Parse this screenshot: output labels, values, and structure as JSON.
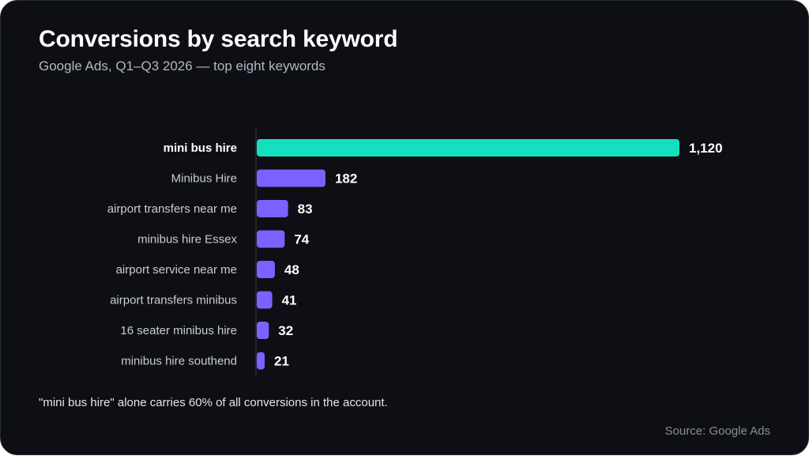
{
  "header": {
    "title": "Conversions by search keyword",
    "subtitle": "Google Ads, Q1–Q3 2026 — top eight keywords"
  },
  "footer": {
    "note": "\"mini bus hire\" alone carries 60% of all conversions in the account.",
    "source": "Source: Google Ads"
  },
  "colors": {
    "background": "#0e0f14",
    "highlight_bar": "#14e0c0",
    "bar": "#7b61ff",
    "axis_line": "#3a3d46",
    "label_text": "#c9ccd3",
    "highlight_label_text": "#ffffff",
    "value_text": "#ffffff"
  },
  "chart_data": {
    "type": "bar",
    "orientation": "horizontal",
    "categories": [
      "mini bus hire",
      "Minibus Hire",
      "airport transfers near me",
      "minibus hire Essex",
      "airport service near me",
      "airport transfers minibus",
      "16 seater minibus hire",
      "minibus hire southend"
    ],
    "values": [
      1120,
      182,
      83,
      74,
      48,
      41,
      32,
      21
    ],
    "value_labels": [
      "1,120",
      "182",
      "83",
      "74",
      "48",
      "41",
      "32",
      "21"
    ],
    "highlighted_category": "mini bus hire",
    "xlim": [
      0,
      1120
    ],
    "grid": false,
    "legend": "none"
  }
}
